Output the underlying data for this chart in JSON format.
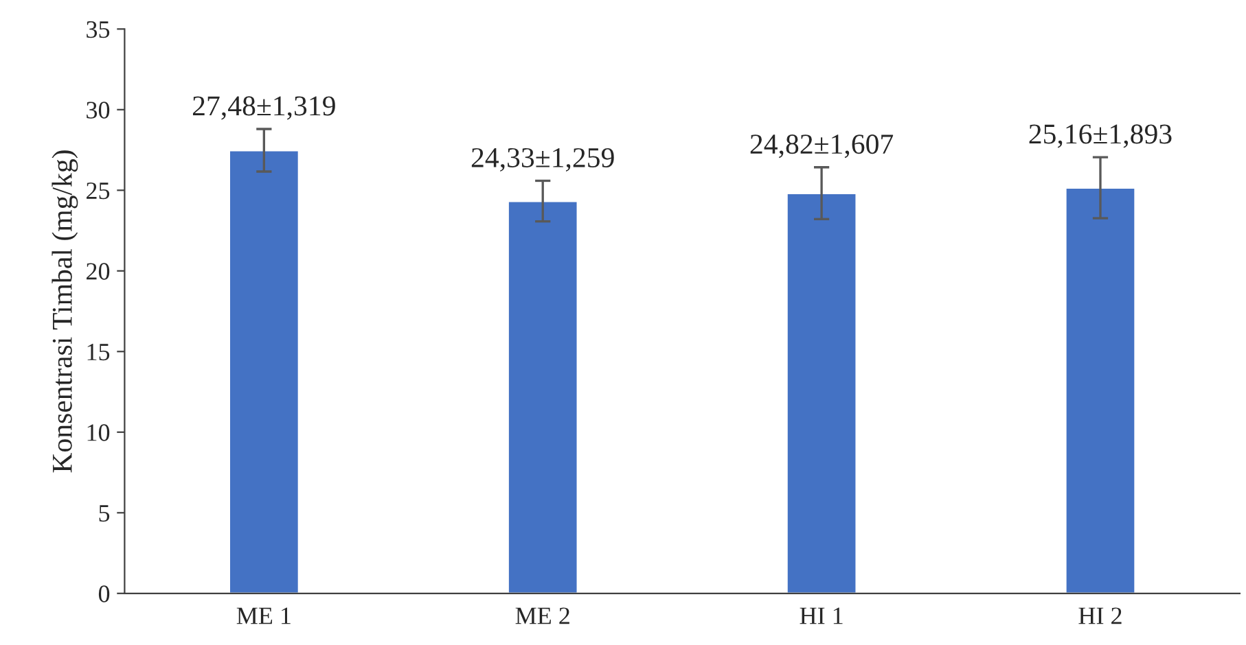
{
  "chart_data": {
    "type": "bar",
    "ylabel": "Konsentrasi Timbal (mg/kg)",
    "categories": [
      "ME 1",
      "ME 2",
      "HI 1",
      "HI 2"
    ],
    "values": [
      27.48,
      24.33,
      24.82,
      25.16
    ],
    "errors": [
      1.319,
      1.259,
      1.607,
      1.893
    ],
    "value_labels": [
      "27,48±1,319",
      "24,33±1,259",
      "24,82±1,607",
      "25,16±1,893"
    ],
    "color": "#4472c4",
    "ylim": [
      0,
      35
    ],
    "yticks": [
      0,
      5,
      10,
      15,
      20,
      25,
      30,
      35
    ],
    "grid": false
  }
}
